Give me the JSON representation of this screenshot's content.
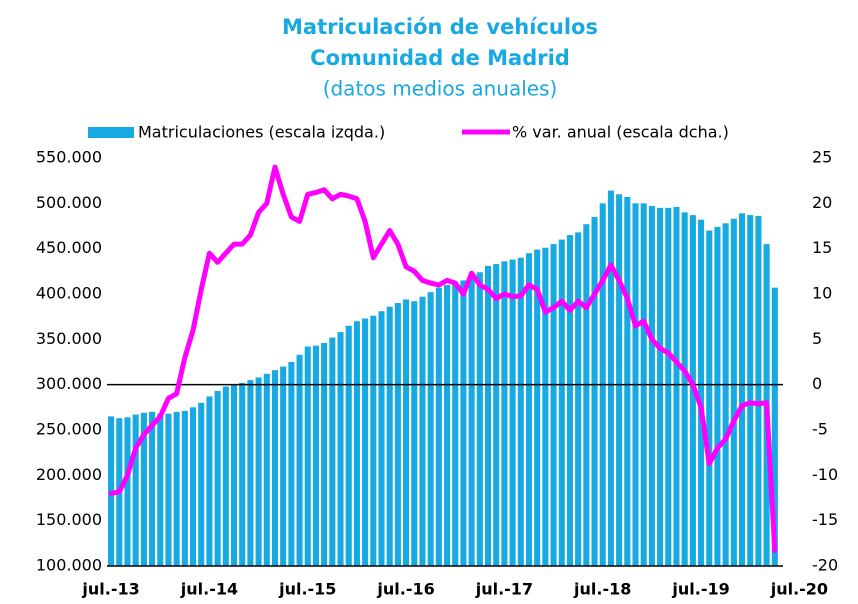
{
  "chart_data": {
    "type": "bar_line",
    "title": "Matriculación de vehículos",
    "subtitle": "Comunidad de Madrid",
    "note": "(datos medios anuales)",
    "categories": [
      "jul.-13",
      null,
      null,
      null,
      null,
      null,
      null,
      null,
      null,
      null,
      null,
      null,
      "jul.-14",
      null,
      null,
      null,
      null,
      null,
      null,
      null,
      null,
      null,
      null,
      null,
      "jul.-15",
      null,
      null,
      null,
      null,
      null,
      null,
      null,
      null,
      null,
      null,
      null,
      "jul.-16",
      null,
      null,
      null,
      null,
      null,
      null,
      null,
      null,
      null,
      null,
      null,
      "jul.-17",
      null,
      null,
      null,
      null,
      null,
      null,
      null,
      null,
      null,
      null,
      null,
      "jul.-18",
      null,
      null,
      null,
      null,
      null,
      null,
      null,
      null,
      null,
      null,
      null,
      "jul.-19",
      null,
      null,
      null,
      null,
      null,
      null,
      null,
      null,
      null,
      null,
      null,
      "jul.-20"
    ],
    "series": [
      {
        "name": "Matriculaciones (escala izqda.)",
        "type": "bar",
        "color": "#17a9e1",
        "values": [
          265000,
          263000,
          264000,
          267000,
          269000,
          270000,
          268000,
          268000,
          270000,
          271000,
          275000,
          280000,
          287000,
          293000,
          298000,
          300000,
          302000,
          305000,
          308000,
          312000,
          316000,
          320000,
          325000,
          333000,
          342000,
          343000,
          346000,
          352000,
          358000,
          365000,
          370000,
          373000,
          376000,
          381000,
          386000,
          390000,
          394000,
          392000,
          397000,
          402000,
          407000,
          410000,
          410000,
          415000,
          420000,
          424000,
          431000,
          433000,
          436000,
          438000,
          440000,
          445000,
          449000,
          451000,
          455000,
          460000,
          465000,
          468000,
          477000,
          485000,
          500000,
          514000,
          510000,
          507000,
          500000,
          500000,
          497000,
          495000,
          495000,
          496000,
          490000,
          487000,
          482000,
          470000,
          474000,
          478000,
          483000,
          489000,
          487000,
          486000,
          455000,
          407000,
          null,
          null,
          null
        ]
      },
      {
        "name": "% var. anual (escala dcha.)",
        "type": "line",
        "axis": "y2",
        "color": "#ff00ff",
        "values": [
          -12,
          -11.8,
          -10,
          -7,
          -5.5,
          -4.5,
          -3.5,
          -1.5,
          -1,
          3,
          6,
          10.5,
          14.5,
          13.5,
          14.5,
          15.5,
          15.5,
          16.5,
          19,
          20,
          24,
          21,
          18.5,
          18,
          21,
          21.2,
          21.5,
          20.5,
          21,
          20.8,
          20.5,
          18,
          14,
          15.5,
          17,
          15.5,
          13,
          12.5,
          11.5,
          11.2,
          11,
          11.5,
          11.2,
          10,
          12.3,
          11,
          10.5,
          9.5,
          10,
          9.7,
          9.8,
          11,
          10.5,
          8,
          8.5,
          9.2,
          8.2,
          9.2,
          8.5,
          10,
          11.5,
          13.2,
          11.5,
          9.5,
          6.5,
          7,
          5,
          4,
          3.5,
          2.5,
          1.5,
          0,
          -2.5,
          -8.7,
          -7,
          -6,
          -4,
          -2.3,
          -2,
          -2.1,
          -2,
          -18.3,
          null,
          null,
          null
        ]
      }
    ],
    "ylim": [
      100000,
      550000
    ],
    "yticks": [
      {
        "value": 100000,
        "label": "100.000"
      },
      {
        "value": 150000,
        "label": "150.000"
      },
      {
        "value": 200000,
        "label": "200.000"
      },
      {
        "value": 250000,
        "label": "250.000"
      },
      {
        "value": 300000,
        "label": "300.000"
      },
      {
        "value": 350000,
        "label": "350.000"
      },
      {
        "value": 400000,
        "label": "400.000"
      },
      {
        "value": 450000,
        "label": "450.000"
      },
      {
        "value": 500000,
        "label": "500.000"
      },
      {
        "value": 550000,
        "label": "550.000"
      }
    ],
    "y2lim": [
      -20,
      25
    ],
    "y2ticks": [
      -20,
      -15,
      -10,
      -5,
      0,
      5,
      10,
      15,
      20,
      25
    ],
    "legend": "top"
  }
}
